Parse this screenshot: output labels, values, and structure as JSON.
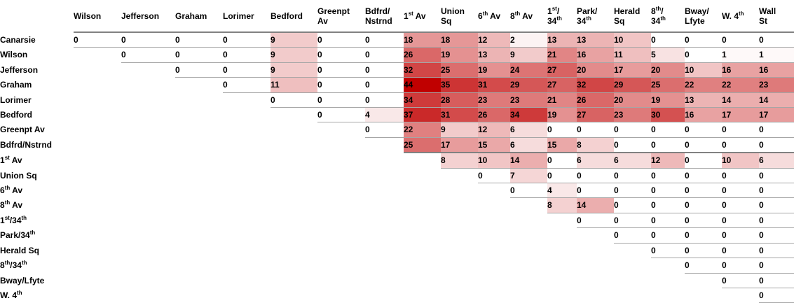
{
  "chart_data": {
    "type": "heatmap",
    "title": "",
    "rows": [
      "Canarsie",
      "Wilson",
      "Jefferson",
      "Graham",
      "Lorimer",
      "Bedford",
      "Greenpt Av",
      "Bdfrd/Nstrnd",
      "1st Av",
      "Union Sq",
      "6th Av",
      "8th Av",
      "1st/34th",
      "Park/34th",
      "Herald Sq",
      "8th/34th",
      "Bway/Lfyte",
      "W. 4th"
    ],
    "columns": [
      "Wilson",
      "Jefferson",
      "Graham",
      "Lorimer",
      "Bedford",
      "Greenpt Av",
      "Bdfrd/Nstrnd",
      "1st Av",
      "Union Sq",
      "6th Av",
      "8th Av",
      "1st/34th",
      "Park/34th",
      "Herald Sq",
      "8th/34th",
      "Bway/Lfyte",
      "W. 4th",
      "Wall St"
    ],
    "values": [
      [
        0,
        0,
        0,
        0,
        9,
        0,
        0,
        18,
        18,
        12,
        2,
        13,
        13,
        10,
        0,
        0,
        0,
        0
      ],
      [
        null,
        0,
        0,
        0,
        9,
        0,
        0,
        26,
        19,
        13,
        9,
        21,
        16,
        11,
        5,
        0,
        1,
        1
      ],
      [
        null,
        null,
        0,
        0,
        9,
        0,
        0,
        32,
        25,
        19,
        24,
        27,
        20,
        17,
        20,
        10,
        16,
        16
      ],
      [
        null,
        null,
        null,
        0,
        11,
        0,
        0,
        44,
        35,
        31,
        29,
        27,
        32,
        29,
        25,
        22,
        22,
        23
      ],
      [
        null,
        null,
        null,
        null,
        0,
        0,
        0,
        34,
        28,
        23,
        23,
        21,
        26,
        20,
        19,
        13,
        14,
        14
      ],
      [
        null,
        null,
        null,
        null,
        null,
        0,
        4,
        37,
        31,
        26,
        34,
        19,
        27,
        23,
        30,
        16,
        17,
        17
      ],
      [
        null,
        null,
        null,
        null,
        null,
        null,
        0,
        22,
        9,
        12,
        6,
        0,
        0,
        0,
        0,
        0,
        0,
        0
      ],
      [
        null,
        null,
        null,
        null,
        null,
        null,
        null,
        25,
        17,
        15,
        6,
        15,
        8,
        0,
        0,
        0,
        0,
        0
      ],
      [
        null,
        null,
        null,
        null,
        null,
        null,
        null,
        null,
        8,
        10,
        14,
        0,
        6,
        6,
        12,
        0,
        10,
        6
      ],
      [
        null,
        null,
        null,
        null,
        null,
        null,
        null,
        null,
        null,
        0,
        7,
        0,
        0,
        0,
        0,
        0,
        0,
        0
      ],
      [
        null,
        null,
        null,
        null,
        null,
        null,
        null,
        null,
        null,
        null,
        0,
        4,
        0,
        0,
        0,
        0,
        0,
        0
      ],
      [
        null,
        null,
        null,
        null,
        null,
        null,
        null,
        null,
        null,
        null,
        null,
        8,
        14,
        0,
        0,
        0,
        0,
        0
      ],
      [
        null,
        null,
        null,
        null,
        null,
        null,
        null,
        null,
        null,
        null,
        null,
        null,
        0,
        0,
        0,
        0,
        0,
        0
      ],
      [
        null,
        null,
        null,
        null,
        null,
        null,
        null,
        null,
        null,
        null,
        null,
        null,
        null,
        0,
        0,
        0,
        0,
        0
      ],
      [
        null,
        null,
        null,
        null,
        null,
        null,
        null,
        null,
        null,
        null,
        null,
        null,
        null,
        null,
        0,
        0,
        0,
        0
      ],
      [
        null,
        null,
        null,
        null,
        null,
        null,
        null,
        null,
        null,
        null,
        null,
        null,
        null,
        null,
        null,
        0,
        0,
        0
      ],
      [
        null,
        null,
        null,
        null,
        null,
        null,
        null,
        null,
        null,
        null,
        null,
        null,
        null,
        null,
        null,
        null,
        0,
        0
      ],
      [
        null,
        null,
        null,
        null,
        null,
        null,
        null,
        null,
        null,
        null,
        null,
        null,
        null,
        null,
        null,
        null,
        null,
        0
      ]
    ],
    "value_range": [
      0,
      44
    ],
    "color_scale": {
      "min_color": "#FFFFFF",
      "max_color": "#C00000"
    },
    "legend": "none",
    "grid": "row-underlines"
  },
  "display": {
    "column_labels": [
      "Wilson",
      "Jefferson",
      "Graham",
      "Lorimer",
      "Bedford",
      "Greenpt\nAv",
      "Bdfrd/\nNstrnd",
      "1^st^ Av",
      "Union\nSq",
      "6^th^ Av",
      "8^th^ Av",
      "1^st^/\n34^th^",
      "Park/\n34^th^",
      "Herald\nSq",
      "8^th^/\n34^th^",
      "Bway/\nLfyte",
      "W. 4^th^",
      "Wall\nSt"
    ],
    "row_labels": [
      "Canarsie",
      "Wilson",
      "Jefferson",
      "Graham",
      "Lorimer",
      "Bedford",
      "Greenpt Av",
      "Bdfrd/Nstrnd",
      "1^st^ Av",
      "Union Sq",
      "6^th^ Av",
      "8^th^ Av",
      "1^st^/34^th^",
      "Park/34^th^",
      "Herald Sq",
      "8^th^/34^th^",
      "Bway/Lfyte",
      "W. 4^th^"
    ],
    "separator_after_row_index": 7,
    "header_line_color": "#818181",
    "row_line_color": "#A6A6A6"
  }
}
